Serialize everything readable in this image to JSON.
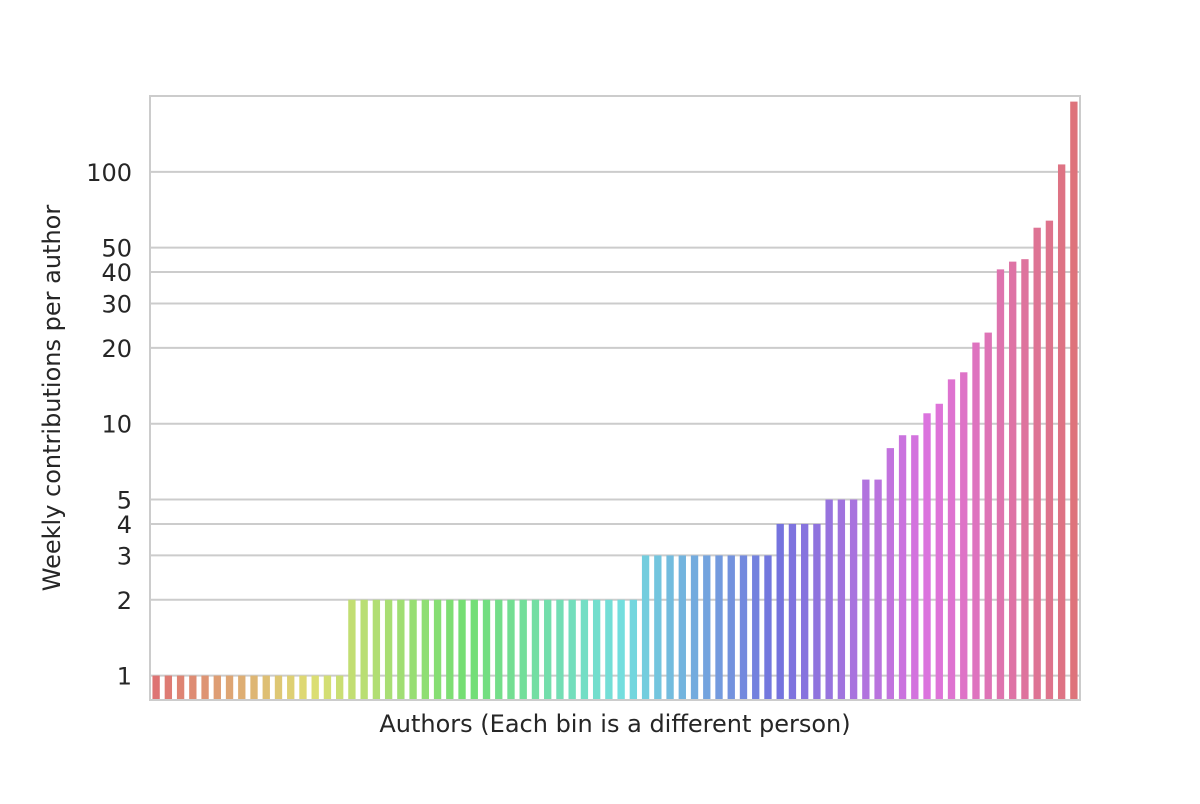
{
  "chart_data": {
    "type": "bar",
    "title": "",
    "xlabel": "Authors (Each bin is a different person)",
    "ylabel": "Weekly contributions per author",
    "yscale": "log",
    "ylim": [
      0.8,
      200
    ],
    "yticks": [
      1,
      2,
      3,
      4,
      5,
      10,
      20,
      30,
      40,
      50,
      100
    ],
    "grid": "horizontal",
    "legend": "none",
    "values": [
      1,
      1,
      1,
      1,
      1,
      1,
      1,
      1,
      1,
      1,
      1,
      1,
      1,
      1,
      1,
      1,
      2,
      2,
      2,
      2,
      2,
      2,
      2,
      2,
      2,
      2,
      2,
      2,
      2,
      2,
      2,
      2,
      2,
      2,
      2,
      2,
      2,
      2,
      2,
      2,
      3,
      3,
      3,
      3,
      3,
      3,
      3,
      3,
      3,
      3,
      3,
      4,
      4,
      4,
      4,
      5,
      5,
      5,
      6,
      6,
      8,
      9,
      9,
      11,
      12,
      15,
      16,
      21,
      23,
      41,
      44,
      45,
      60,
      64,
      107,
      190
    ]
  }
}
